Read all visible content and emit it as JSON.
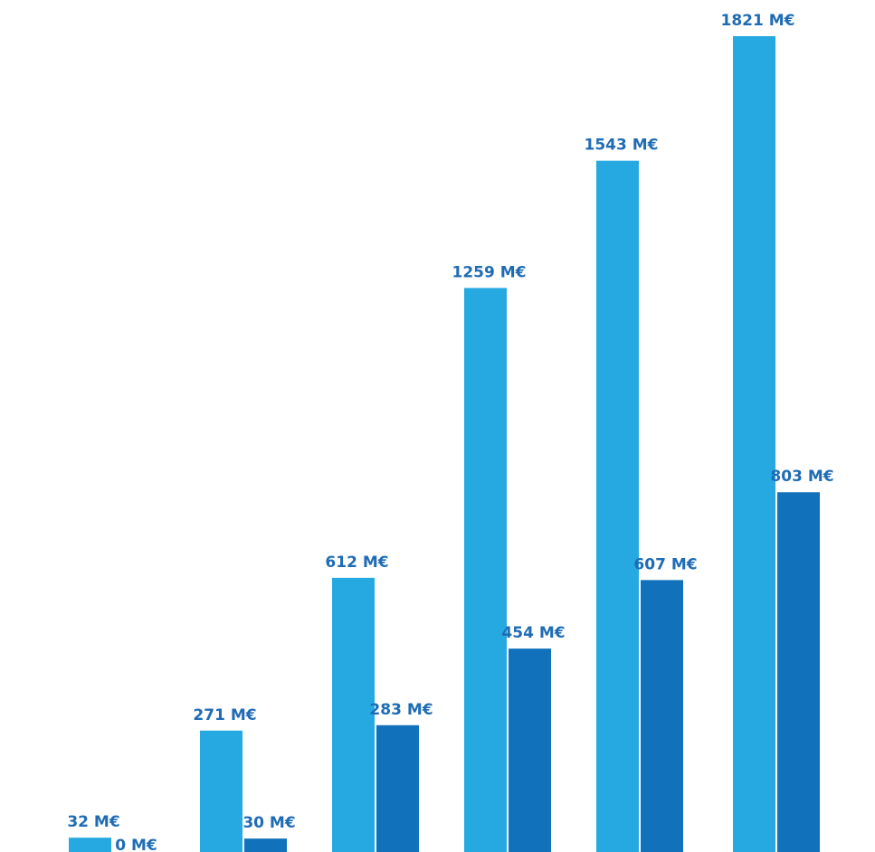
{
  "chart_data": {
    "type": "bar",
    "title": "",
    "xlabel": "",
    "ylabel": "",
    "categories": [
      "",
      "",
      "",
      "",
      "",
      ""
    ],
    "ylim": [
      0,
      1821
    ],
    "grid": false,
    "series": [
      {
        "color": "#26a9e0",
        "values": [
          32,
          271,
          612,
          1259,
          1543,
          1821
        ],
        "labels": [
          "32 M€",
          "271 M€",
          "612 M€",
          "1259 M€",
          "1543 M€",
          "1821 M€"
        ]
      },
      {
        "color": "#1172bb",
        "values": [
          0,
          30,
          283,
          454,
          607,
          803
        ],
        "labels": [
          "0 M€",
          "30 M€",
          "283 M€",
          "454 M€",
          "607 M€",
          "803 M€"
        ]
      }
    ],
    "label_color": "#1f6cb4"
  }
}
